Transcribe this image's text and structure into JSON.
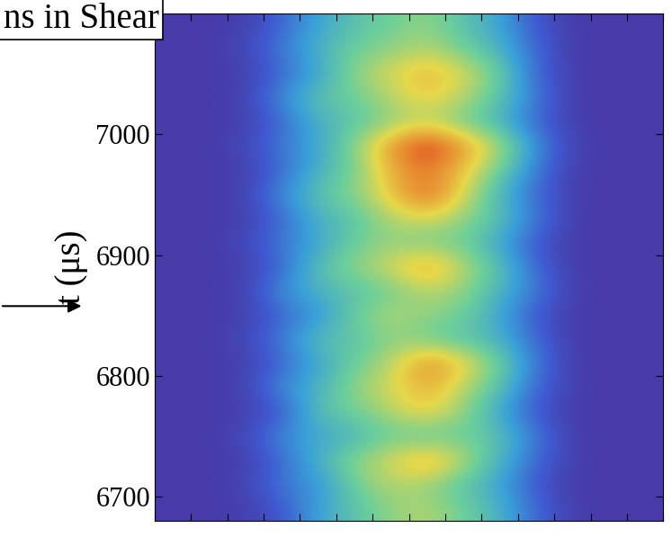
{
  "chart_data": {
    "type": "heatmap",
    "title": "ns in Shear",
    "ylabel": "t (μs)",
    "xlim": [
      0,
      14
    ],
    "ylim": [
      6680,
      7100
    ],
    "xticks": [
      0,
      1,
      2,
      3,
      4,
      5,
      6,
      7,
      8,
      9,
      10,
      11,
      12,
      13,
      14
    ],
    "yticks": [
      6700,
      6800,
      6900,
      7000
    ],
    "tick_labels": "y",
    "crange": [
      0,
      1
    ],
    "cells": [
      [
        0.05,
        0.05,
        0.06,
        0.15,
        0.35,
        0.45,
        0.55,
        0.6,
        0.5,
        0.4,
        0.2,
        0.06,
        0.05,
        0.05
      ],
      [
        0.05,
        0.05,
        0.08,
        0.25,
        0.3,
        0.5,
        0.6,
        0.55,
        0.45,
        0.35,
        0.15,
        0.05,
        0.05,
        0.05
      ],
      [
        0.05,
        0.05,
        0.06,
        0.2,
        0.4,
        0.55,
        0.65,
        0.8,
        0.6,
        0.4,
        0.2,
        0.06,
        0.05,
        0.05
      ],
      [
        0.05,
        0.05,
        0.1,
        0.3,
        0.35,
        0.4,
        0.5,
        0.45,
        0.5,
        0.45,
        0.25,
        0.05,
        0.05,
        0.05
      ],
      [
        0.05,
        0.05,
        0.06,
        0.15,
        0.45,
        0.5,
        0.6,
        0.7,
        0.55,
        0.35,
        0.15,
        0.05,
        0.05,
        0.05
      ],
      [
        0.05,
        0.05,
        0.08,
        0.3,
        0.4,
        0.55,
        0.65,
        0.75,
        0.6,
        0.45,
        0.2,
        0.06,
        0.05,
        0.05
      ],
      [
        0.05,
        0.05,
        0.06,
        0.2,
        0.35,
        0.5,
        0.6,
        0.85,
        0.7,
        0.5,
        0.25,
        0.05,
        0.05,
        0.05
      ],
      [
        0.05,
        0.05,
        0.1,
        0.25,
        0.45,
        0.45,
        0.55,
        0.5,
        0.45,
        0.4,
        0.2,
        0.05,
        0.05,
        0.05
      ],
      [
        0.05,
        0.05,
        0.06,
        0.2,
        0.3,
        0.5,
        0.6,
        0.55,
        0.5,
        0.35,
        0.15,
        0.05,
        0.05,
        0.05
      ],
      [
        0.05,
        0.05,
        0.08,
        0.3,
        0.4,
        0.45,
        0.5,
        0.6,
        0.55,
        0.4,
        0.25,
        0.06,
        0.05,
        0.05
      ],
      [
        0.05,
        0.05,
        0.06,
        0.2,
        0.45,
        0.55,
        0.65,
        0.8,
        0.6,
        0.45,
        0.2,
        0.05,
        0.05,
        0.05
      ],
      [
        0.05,
        0.05,
        0.1,
        0.25,
        0.35,
        0.5,
        0.55,
        0.5,
        0.5,
        0.35,
        0.15,
        0.05,
        0.05,
        0.05
      ],
      [
        0.05,
        0.05,
        0.06,
        0.2,
        0.4,
        0.45,
        0.6,
        0.65,
        0.55,
        0.45,
        0.25,
        0.05,
        0.05,
        0.05
      ],
      [
        0.05,
        0.05,
        0.08,
        0.3,
        0.45,
        0.55,
        0.7,
        0.9,
        0.65,
        0.4,
        0.2,
        0.06,
        0.05,
        0.05
      ],
      [
        0.05,
        0.05,
        0.06,
        0.2,
        0.4,
        0.5,
        0.75,
        0.85,
        0.7,
        0.5,
        0.25,
        0.05,
        0.05,
        0.05
      ],
      [
        0.05,
        0.05,
        0.1,
        0.25,
        0.35,
        0.55,
        0.8,
        1.0,
        0.8,
        0.6,
        0.3,
        0.08,
        0.05,
        0.05
      ],
      [
        0.05,
        0.05,
        0.06,
        0.2,
        0.4,
        0.45,
        0.55,
        0.6,
        0.5,
        0.4,
        0.2,
        0.05,
        0.05,
        0.05
      ],
      [
        0.05,
        0.05,
        0.08,
        0.3,
        0.45,
        0.5,
        0.6,
        0.7,
        0.6,
        0.45,
        0.25,
        0.05,
        0.05,
        0.05
      ],
      [
        0.05,
        0.05,
        0.06,
        0.2,
        0.35,
        0.55,
        0.65,
        0.75,
        0.65,
        0.5,
        0.2,
        0.05,
        0.05,
        0.05
      ],
      [
        0.05,
        0.05,
        0.1,
        0.25,
        0.4,
        0.5,
        0.55,
        0.6,
        0.5,
        0.4,
        0.2,
        0.05,
        0.05,
        0.05
      ],
      [
        0.05,
        0.05,
        0.06,
        0.2,
        0.35,
        0.45,
        0.5,
        0.55,
        0.45,
        0.35,
        0.15,
        0.05,
        0.05,
        0.05
      ]
    ]
  }
}
